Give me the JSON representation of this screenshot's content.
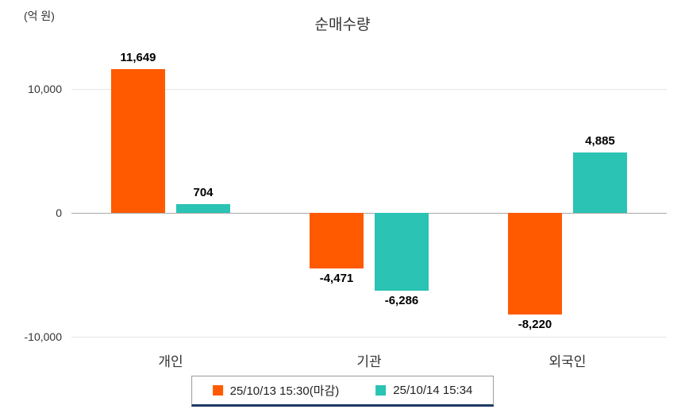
{
  "chart_data": {
    "type": "bar",
    "title": "순매수량",
    "ylabel": "(억 원)",
    "categories": [
      "개인",
      "기관",
      "외국인"
    ],
    "series": [
      {
        "name": "25/10/13 15:30(마감)",
        "color": "#ff5a00",
        "values": [
          11649,
          -4471,
          -8220
        ],
        "labels": [
          "11,649",
          "-4,471",
          "-8,220"
        ]
      },
      {
        "name": "25/10/14 15:34",
        "color": "#2ac3b4",
        "values": [
          704,
          -6286,
          4885
        ],
        "labels": [
          "704",
          "-6,286",
          "4,885"
        ]
      }
    ],
    "ylim": [
      -10600,
      13500
    ],
    "yticks": [
      {
        "value": 10000,
        "label": "10,000"
      },
      {
        "value": 0,
        "label": "0"
      },
      {
        "value": -10000,
        "label": "-10,000"
      }
    ],
    "legend_position": "bottom",
    "grid": true
  }
}
